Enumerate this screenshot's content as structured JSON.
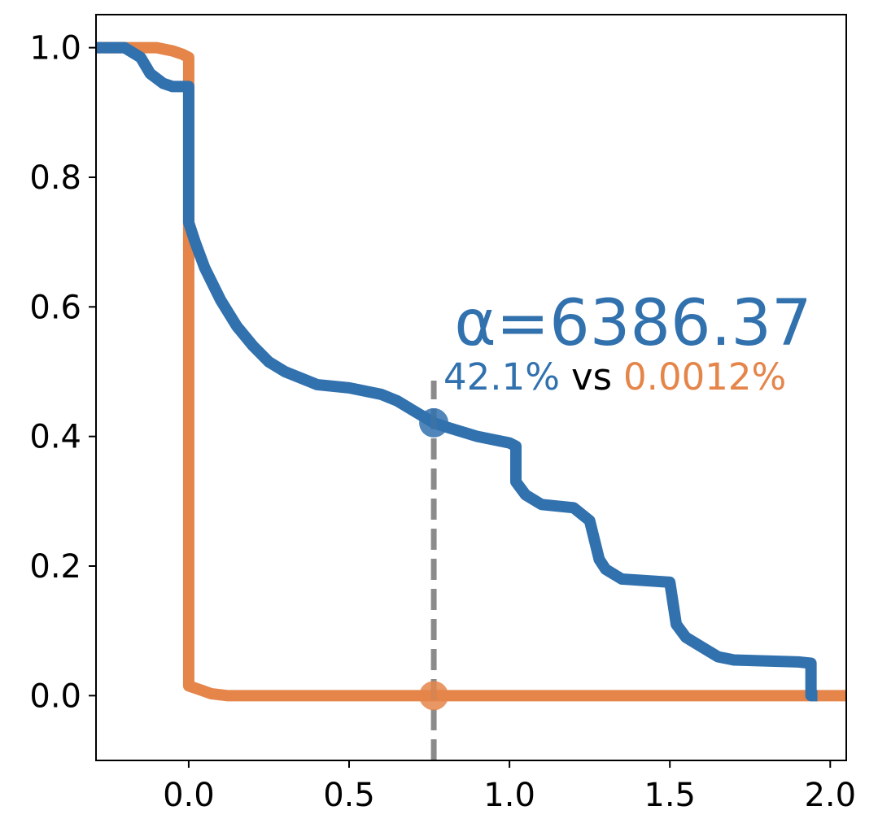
{
  "chart_data": {
    "type": "line",
    "xlim": [
      -0.289,
      2.05
    ],
    "ylim": [
      -0.1,
      1.051
    ],
    "xticks": [
      {
        "value": 0,
        "label": "0.0"
      },
      0.5,
      {
        "value": 1,
        "label": "1.0"
      },
      1.5,
      {
        "value": 2,
        "label": "2.0"
      }
    ],
    "yticks": [
      {
        "value": 0,
        "label": "0.0"
      },
      0.2,
      0.4,
      0.6,
      0.8,
      {
        "value": 1,
        "label": "1.0"
      }
    ],
    "grid": false,
    "series": [
      {
        "color": "#3171ae",
        "x": [
          -0.289,
          -0.2,
          -0.15,
          -0.12,
          -0.08,
          -0.05,
          0.0,
          0.0,
          0.02,
          0.05,
          0.1,
          0.15,
          0.2,
          0.25,
          0.3,
          0.4,
          0.5,
          0.6,
          0.65,
          0.7,
          0.764,
          0.8,
          0.9,
          1.0,
          1.02,
          1.02,
          1.05,
          1.1,
          1.2,
          1.25,
          1.28,
          1.3,
          1.35,
          1.5,
          1.52,
          1.55,
          1.6,
          1.65,
          1.7,
          1.9,
          1.94,
          1.94,
          1.96
        ],
        "values": [
          1.0,
          1.0,
          0.985,
          0.96,
          0.945,
          0.94,
          0.94,
          0.73,
          0.7,
          0.66,
          0.61,
          0.57,
          0.54,
          0.515,
          0.5,
          0.48,
          0.475,
          0.465,
          0.455,
          0.44,
          0.421,
          0.415,
          0.4,
          0.39,
          0.385,
          0.33,
          0.31,
          0.295,
          0.29,
          0.27,
          0.21,
          0.195,
          0.18,
          0.175,
          0.11,
          0.09,
          0.075,
          0.06,
          0.055,
          0.052,
          0.05,
          0.0,
          0.0
        ]
      },
      {
        "color": "#e5854a",
        "x": [
          -0.289,
          -0.1,
          -0.05,
          -0.02,
          0.0,
          0.0,
          0.03,
          0.07,
          0.12,
          0.5,
          1.0,
          2.05
        ],
        "values": [
          1.0,
          1.0,
          0.995,
          0.99,
          0.985,
          0.015,
          0.01,
          0.003,
          0.0,
          0.0,
          0.0,
          0.0
        ]
      }
    ],
    "vline": {
      "x": 0.764,
      "color": "#7f7f7f"
    },
    "markers": [
      {
        "x": 0.764,
        "y": 0.421,
        "color": "#3171ae"
      },
      {
        "x": 0.764,
        "y": 0.0,
        "color": "#e5854a"
      }
    ],
    "annotation": {
      "title": "α=6386.37",
      "title_color": "#3171ae",
      "parts": [
        {
          "text": "42.1%",
          "color": "#3171ae"
        },
        {
          "text": "vs",
          "color": "#000000"
        },
        {
          "text": "0.0012%",
          "color": "#e5854a"
        }
      ]
    }
  }
}
